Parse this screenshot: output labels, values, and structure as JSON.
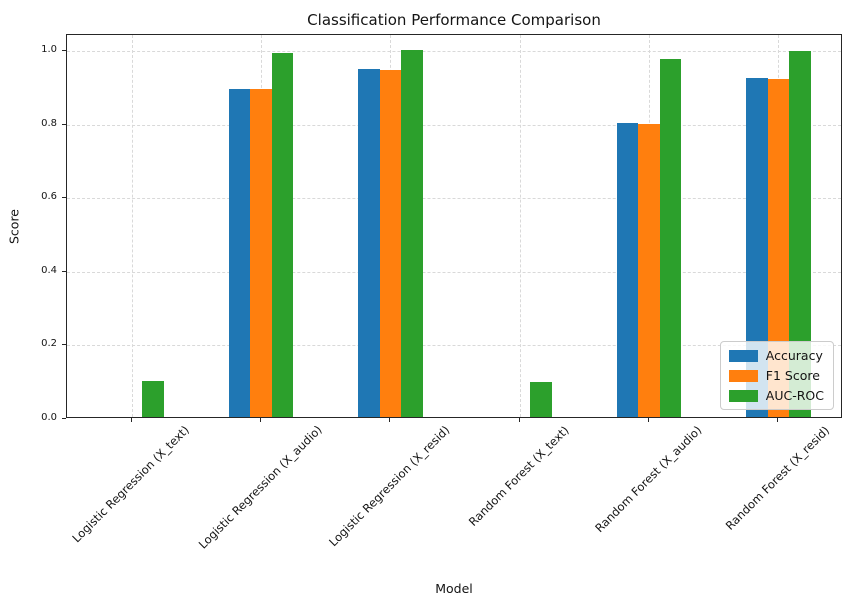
{
  "chart_data": {
    "type": "bar",
    "title": "Classification Performance Comparison",
    "xlabel": "Model",
    "ylabel": "Score",
    "ylim": [
      0.0,
      1.043
    ],
    "yticks": [
      0.0,
      0.2,
      0.4,
      0.6,
      0.8,
      1.0
    ],
    "grid": true,
    "legend_position": "lower right",
    "categories": [
      "Logistic Regression (X_text)",
      "Logistic Regression (X_audio)",
      "Logistic Regression (X_resid)",
      "Random Forest (X_text)",
      "Random Forest (X_audio)",
      "Random Forest (X_resid)"
    ],
    "series": [
      {
        "name": "Accuracy",
        "color": "#1f77b4",
        "values": [
          0.0,
          0.89,
          0.945,
          0.0,
          0.8,
          0.92
        ]
      },
      {
        "name": "F1 Score",
        "color": "#ff7f0e",
        "values": [
          0.0,
          0.89,
          0.944,
          0.0,
          0.795,
          0.918
        ]
      },
      {
        "name": "AUC-ROC",
        "color": "#2ca02c",
        "values": [
          0.098,
          0.99,
          0.997,
          0.095,
          0.973,
          0.994
        ]
      }
    ]
  }
}
